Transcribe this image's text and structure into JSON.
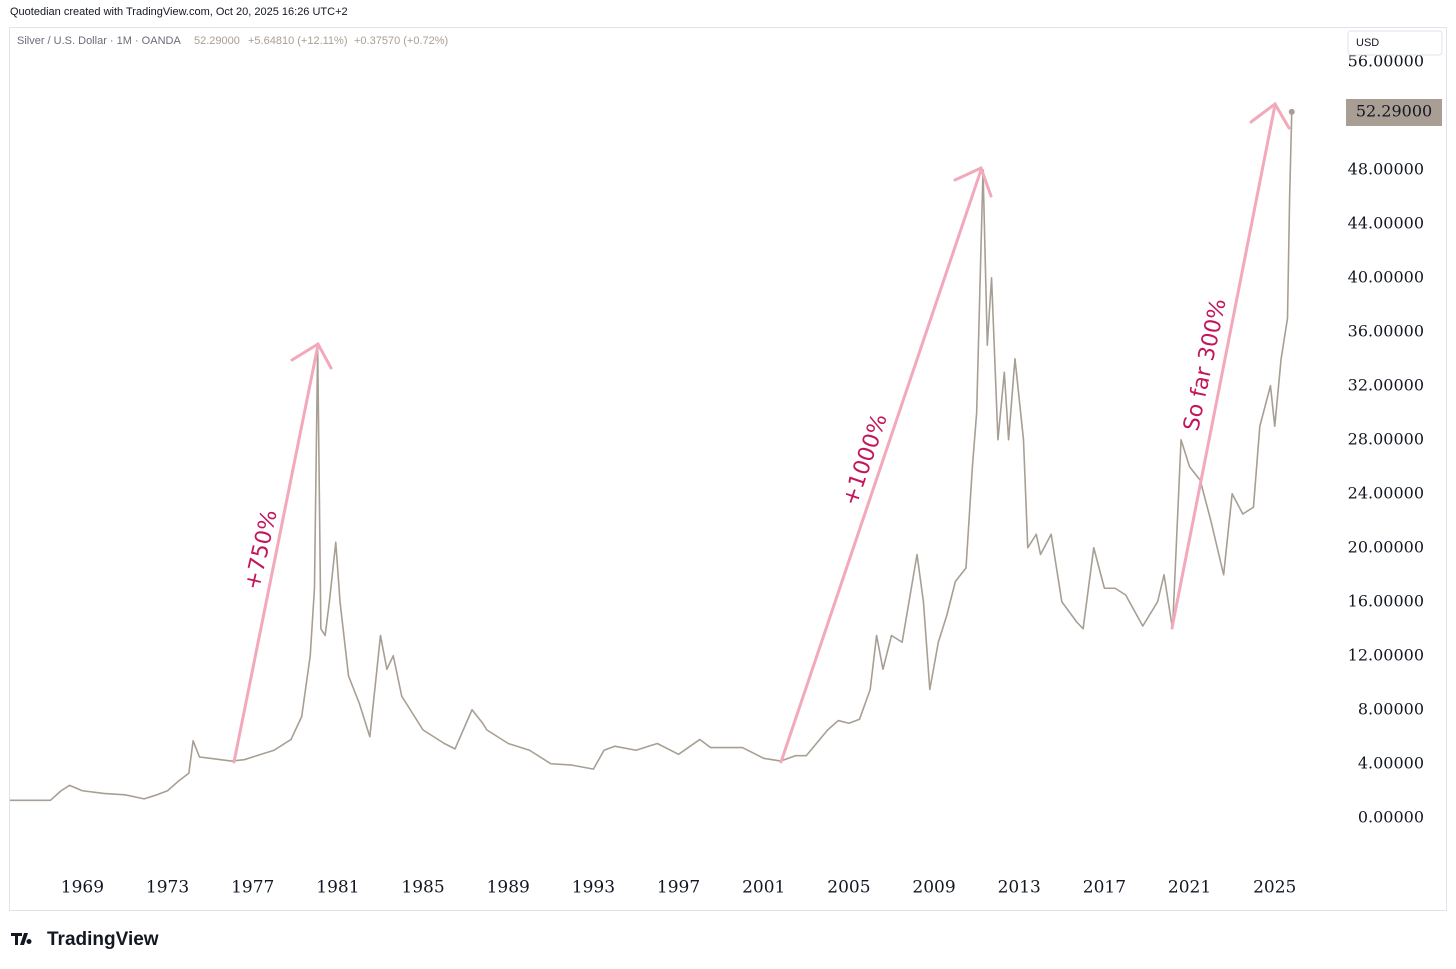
{
  "chart_data": {
    "type": "line",
    "header": "Quotedian created with TradingView.com, Oct 20, 2025 16:26 UTC+2",
    "legend": {
      "symbol": "Silver / U.S. Dollar · 1M · OANDA",
      "close": "52.29000",
      "change": "+5.64810 (+12.11%)",
      "change_last": "+0.37570 (+0.72%)"
    },
    "currency": "USD",
    "price_label": "52.29000",
    "brand": "TradingView",
    "color": "#a89f94",
    "grid": false,
    "annotations": [
      "+750%",
      "+1000%",
      "So far 300%"
    ],
    "x": [
      1965.6,
      1967.5,
      1968.0,
      1968.4,
      1969.0,
      1970.0,
      1971.0,
      1971.9,
      1972.5,
      1973.0,
      1973.5,
      1974.0,
      1974.2,
      1974.5,
      1975.0,
      1976.0,
      1976.6,
      1977.0,
      1978.0,
      1978.8,
      1979.3,
      1979.7,
      1979.9,
      1980.05,
      1980.2,
      1980.4,
      1980.6,
      1980.9,
      1981.1,
      1981.5,
      1982.0,
      1982.5,
      1983.0,
      1983.3,
      1983.6,
      1984.0,
      1985.0,
      1986.0,
      1986.5,
      1987.3,
      1987.8,
      1988.0,
      1989.0,
      1990.0,
      1991.0,
      1992.0,
      1993.0,
      1993.5,
      1994.0,
      1995.0,
      1996.0,
      1997.0,
      1998.0,
      1998.5,
      1999.0,
      2000.0,
      2001.0,
      2001.8,
      2002.5,
      2003.0,
      2004.0,
      2004.5,
      2005.0,
      2005.5,
      2006.0,
      2006.3,
      2006.6,
      2007.0,
      2007.5,
      2008.2,
      2008.5,
      2008.8,
      2009.2,
      2009.6,
      2010.0,
      2010.5,
      2010.8,
      2011.0,
      2011.3,
      2011.5,
      2011.7,
      2012.0,
      2012.3,
      2012.5,
      2012.8,
      2013.2,
      2013.4,
      2013.8,
      2014.0,
      2014.5,
      2015.0,
      2015.7,
      2016.0,
      2016.5,
      2017.0,
      2017.5,
      2018.0,
      2018.8,
      2019.5,
      2019.8,
      2020.2,
      2020.6,
      2021.0,
      2021.5,
      2022.0,
      2022.6,
      2023.0,
      2023.5,
      2024.0,
      2024.3,
      2024.8,
      2025.0,
      2025.3,
      2025.5,
      2025.6,
      2025.7,
      2025.8
    ],
    "values": [
      1.29,
      1.29,
      2.0,
      2.4,
      2.0,
      1.8,
      1.7,
      1.4,
      1.7,
      2.0,
      2.7,
      3.3,
      5.7,
      4.5,
      4.4,
      4.2,
      4.3,
      4.5,
      5.0,
      5.8,
      7.5,
      12,
      17,
      35,
      14,
      13.5,
      16,
      20.4,
      16,
      10.5,
      8.5,
      6,
      13.5,
      11,
      12,
      9,
      6.5,
      5.5,
      5.1,
      8.0,
      7,
      6.5,
      5.5,
      5,
      4,
      3.9,
      3.6,
      5.0,
      5.3,
      5.0,
      5.5,
      4.7,
      5.8,
      5.2,
      5.2,
      5.2,
      4.4,
      4.2,
      4.6,
      4.6,
      6.5,
      7.2,
      7,
      7.3,
      9.5,
      13.5,
      11,
      13.5,
      13,
      19.5,
      16,
      9.5,
      13,
      15,
      17.5,
      18.5,
      26,
      30,
      48,
      35,
      40,
      28,
      33,
      28,
      34,
      28,
      20,
      21,
      19.5,
      21,
      16,
      14.5,
      14,
      20,
      17,
      17,
      16.5,
      14.2,
      16,
      18,
      14.0,
      28,
      26,
      25,
      22,
      18,
      24,
      22.5,
      23,
      29,
      32,
      29,
      34,
      36,
      37,
      46,
      52.29
    ],
    "xlim": [
      1965.6,
      2028.3
    ],
    "xticks": [
      1969,
      1973,
      1977,
      1981,
      1985,
      1989,
      1993,
      1997,
      2001,
      2005,
      2009,
      2013,
      2017,
      2021,
      2025
    ],
    "ylim": [
      -3.5,
      58.5
    ],
    "yticks": [
      {
        "value": 0,
        "label": "0.00000"
      },
      {
        "value": 4,
        "label": "4.00000"
      },
      {
        "value": 8,
        "label": "8.00000"
      },
      {
        "value": 12,
        "label": "12.00000"
      },
      {
        "value": 16,
        "label": "16.00000"
      },
      {
        "value": 20,
        "label": "20.00000"
      },
      {
        "value": 24,
        "label": "24.00000"
      },
      {
        "value": 28,
        "label": "28.00000"
      },
      {
        "value": 32,
        "label": "32.00000"
      },
      {
        "value": 36,
        "label": "36.00000"
      },
      {
        "value": 40,
        "label": "40.00000"
      },
      {
        "value": 44,
        "label": "44.00000"
      },
      {
        "value": 48,
        "label": "48.00000"
      },
      {
        "value": 56,
        "label": "56.00000"
      }
    ]
  }
}
